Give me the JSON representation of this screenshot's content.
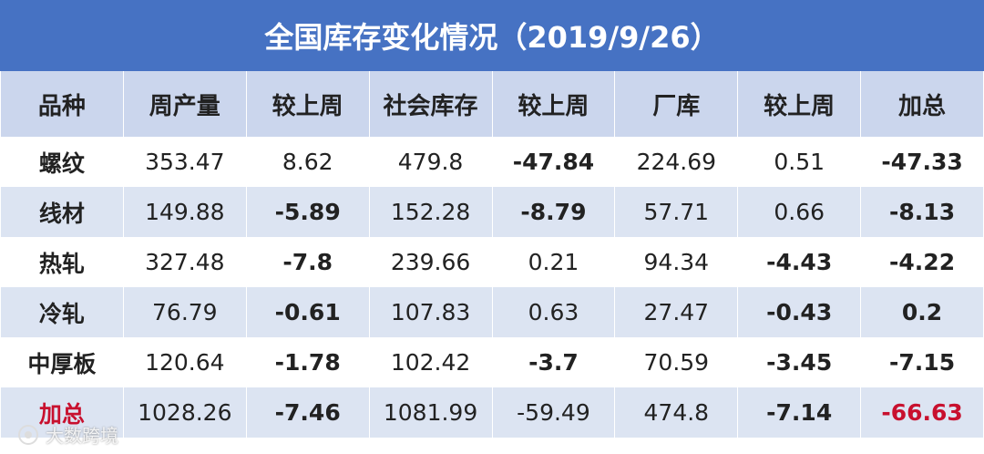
{
  "table": {
    "title": "全国库存变化情况（2019/9/26）",
    "header": [
      "品种",
      "周产量",
      "较上周",
      "社会库存",
      "较上周",
      "厂库",
      "较上周",
      "加总"
    ],
    "rows": [
      [
        "螺纹",
        353.47,
        8.62,
        479.8,
        -47.84,
        224.69,
        0.51,
        -47.33
      ],
      [
        "线材",
        149.88,
        -5.89,
        152.28,
        -8.79,
        57.71,
        0.66,
        -8.13
      ],
      [
        "热轧",
        327.48,
        -7.8,
        239.66,
        0.21,
        94.34,
        -4.43,
        -4.22
      ],
      [
        "冷轧",
        76.79,
        -0.61,
        107.83,
        0.63,
        27.47,
        -0.43,
        0.2
      ],
      [
        "中厚板",
        120.64,
        -1.78,
        102.42,
        -3.7,
        70.59,
        -3.45,
        -7.15
      ],
      [
        "加总",
        1028.26,
        -7.46,
        1081.99,
        -59.49,
        474.8,
        -7.14,
        -66.63
      ]
    ]
  },
  "watermark": "大数跨境"
}
